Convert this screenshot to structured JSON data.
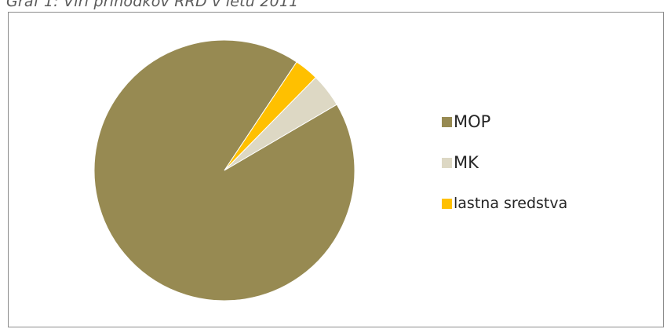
{
  "caption": "Graf 1: Viri prihodkov RRD v letu 2011",
  "chart_data": {
    "type": "pie",
    "title": "",
    "series": [
      {
        "name": "MOP",
        "value": 92.8,
        "color": "#978a52"
      },
      {
        "name": "MK",
        "value": 4.2,
        "color": "#ddd8c4"
      },
      {
        "name": "lastna sredstva",
        "value": 3.0,
        "color": "#ffc000"
      }
    ],
    "legend": "right",
    "start_angle_deg": 56.3,
    "direction": "counterclockwise"
  }
}
